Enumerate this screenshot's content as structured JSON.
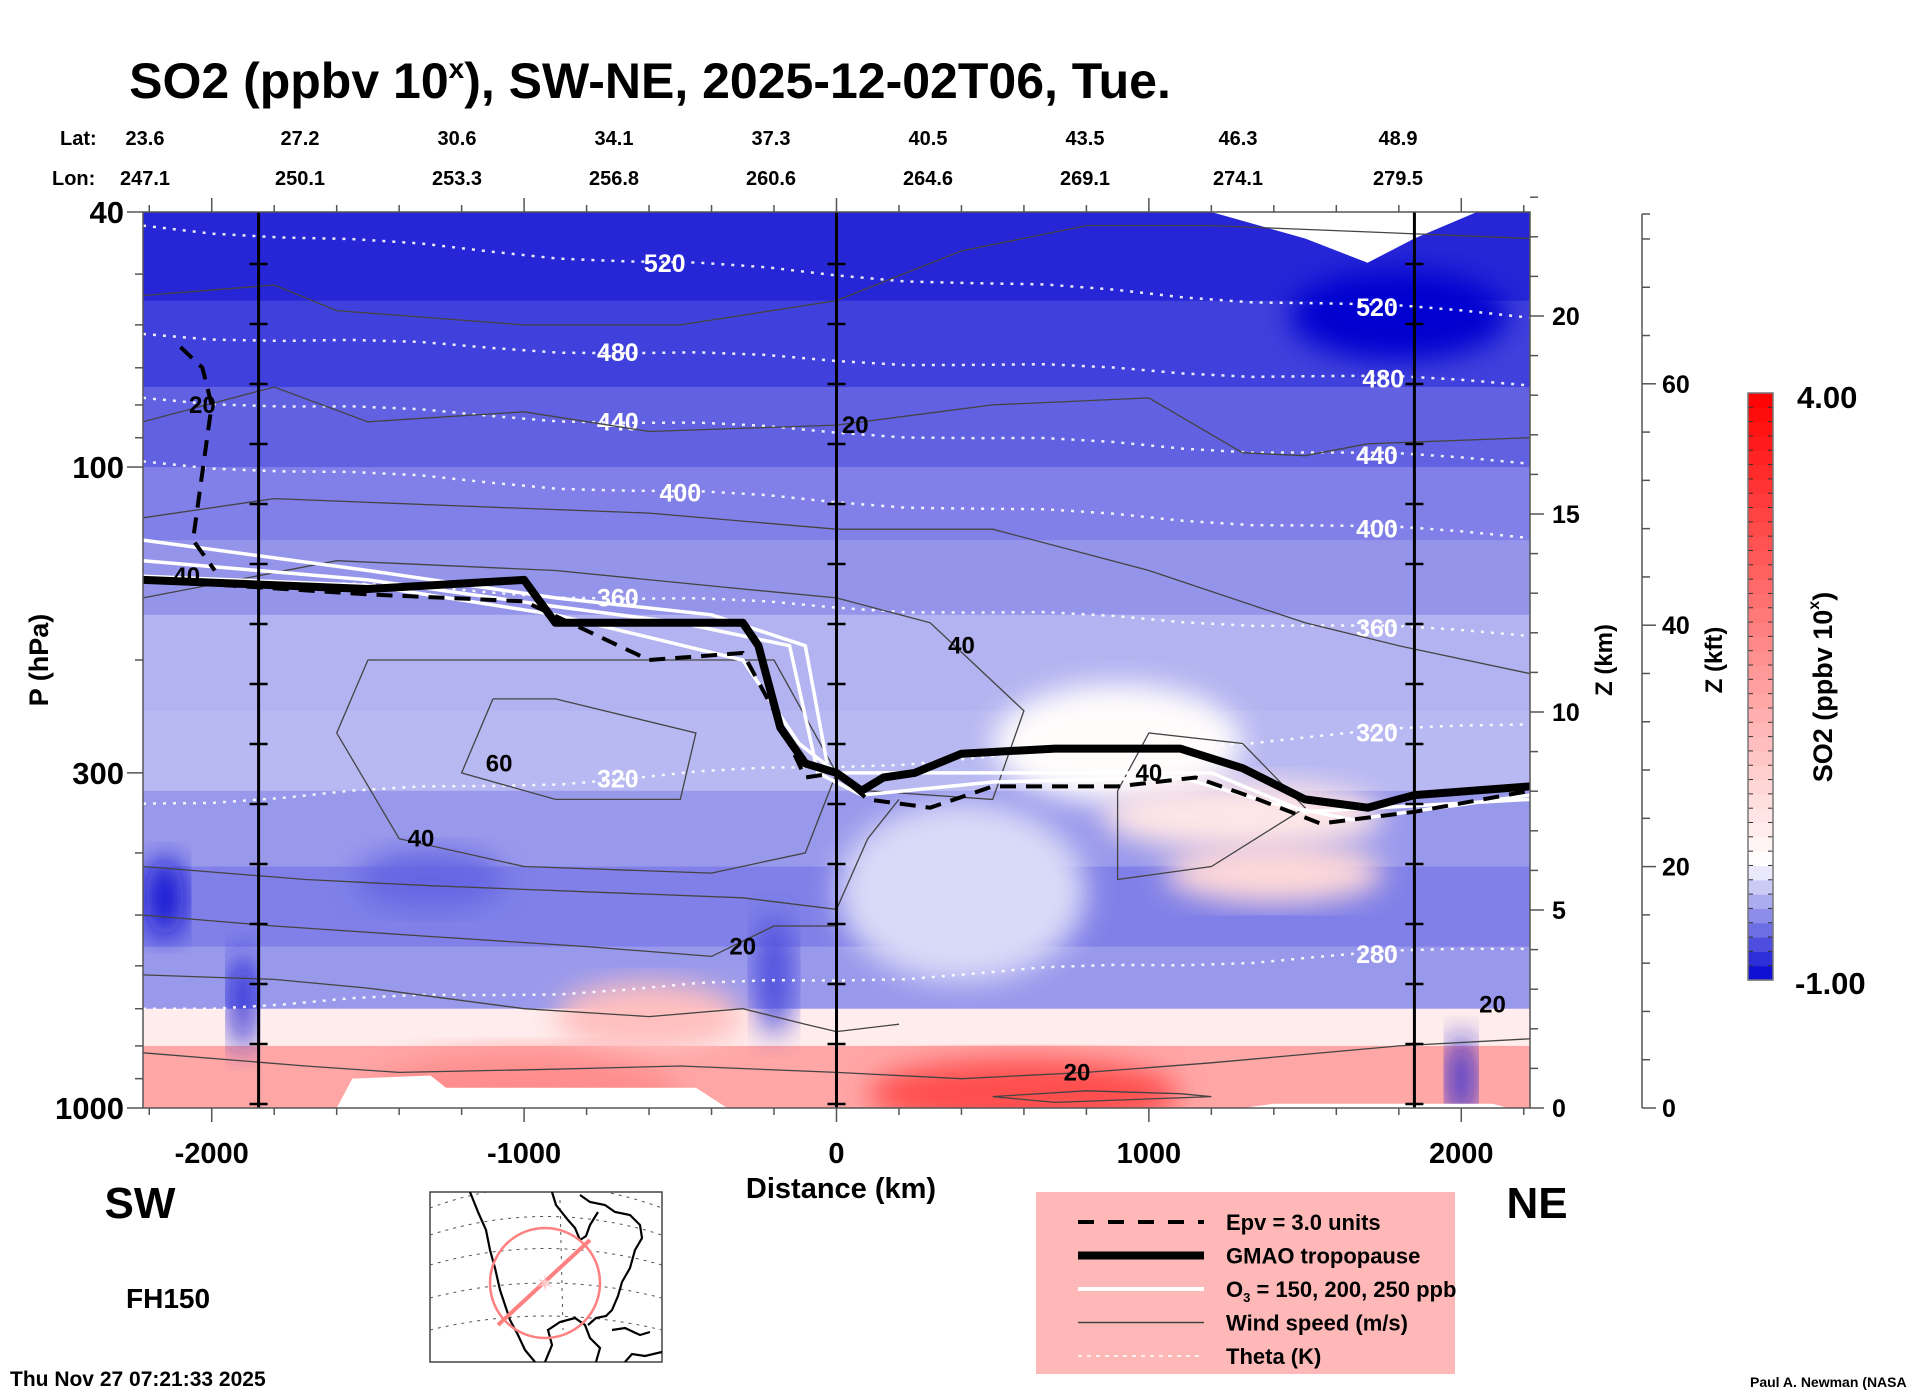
{
  "chart_data": {
    "type": "heatmap",
    "title": "SO2 (ppbv 10",
    "title_sup": "x",
    "title_rest": "), SW-NE, 2025-12-02T06, Tue.",
    "xlabel": "Distance (km)",
    "ylabel": "P (hPa)",
    "xlim": [
      -2220,
      2220
    ],
    "ylim_hpa": [
      1000,
      40
    ],
    "yscale": "log",
    "x_ticks": [
      -2000,
      -1000,
      0,
      1000,
      2000
    ],
    "x_tick_labels": [
      "-2000",
      "-1000",
      "0",
      "1000",
      "2000"
    ],
    "y_ticks": [
      40,
      100,
      300,
      1000
    ],
    "y_tick_labels": [
      "40",
      "100",
      "300",
      "1000"
    ],
    "z_km": {
      "label": "Z (km)",
      "ticks": [
        0,
        5,
        10,
        15,
        20
      ],
      "tick_labels": [
        "0",
        "5",
        "10",
        "15",
        "20"
      ]
    },
    "z_kft": {
      "label": "Z (kft)",
      "ticks": [
        0,
        20,
        40,
        60
      ],
      "tick_labels": [
        "0",
        "20",
        "40",
        "60"
      ]
    },
    "direction_left": "SW",
    "direction_right": "NE",
    "lat_label": "Lat:",
    "lon_label": "Lon:",
    "lat": [
      "23.6",
      "27.2",
      "30.6",
      "34.1",
      "37.3",
      "40.5",
      "43.5",
      "46.3",
      "48.9"
    ],
    "lon": [
      "247.1",
      "250.1",
      "253.3",
      "256.8",
      "260.6",
      "264.6",
      "269.1",
      "274.1",
      "279.5"
    ],
    "vertical_markers_km": [
      -1850,
      0,
      1850
    ],
    "colorbar": {
      "label": "SO2 (ppbv 10",
      "label_sup": "x",
      "label_end": ")",
      "min": -1.0,
      "max": 4.0,
      "min_label": "-1.00",
      "max_label": "4.00",
      "levels": 41,
      "colors": {
        "low": "#0000d0",
        "mid": "#ffffff",
        "high": "#ff0000"
      },
      "white_at": 0.0
    },
    "so2_field_regions": [
      {
        "desc": "upper stratosphere",
        "p_range": [
          40,
          100
        ],
        "value": -0.8
      },
      {
        "desc": "lower stratosphere",
        "p_range": [
          100,
          200
        ],
        "value": -0.5
      },
      {
        "desc": "upper troposphere west",
        "p_range": [
          200,
          400
        ],
        "value": -0.3
      },
      {
        "desc": "mid troposphere west",
        "p_range": [
          400,
          700
        ],
        "value": -0.55
      },
      {
        "desc": "boundary layer",
        "p_range": [
          700,
          1000
        ],
        "value": 1.5
      },
      {
        "desc": "east UT/LS near tropopause",
        "p_range": [
          220,
          400
        ],
        "value": 0.3
      }
    ],
    "theta_contours_K": [
      {
        "value": 520,
        "label_x": [
          -550,
          1730
        ]
      },
      {
        "value": 480,
        "label_x": [
          -700,
          1750
        ]
      },
      {
        "value": 440,
        "label_x": [
          -700,
          1730
        ]
      },
      {
        "value": 400,
        "label_x": [
          -500,
          1730
        ]
      },
      {
        "value": 360,
        "label_x": [
          -700,
          1730
        ]
      },
      {
        "value": 320,
        "label_x": [
          -700,
          1730
        ]
      },
      {
        "value": 280,
        "label_x": [
          1730
        ]
      }
    ],
    "wind_speed_labels_ms": [
      {
        "value": 20,
        "x": -2030,
        "p": 80
      },
      {
        "value": 40,
        "x": -2080,
        "p": 148
      },
      {
        "value": 20,
        "x": 60,
        "p": 86
      },
      {
        "value": 40,
        "x": 400,
        "p": 190
      },
      {
        "value": 60,
        "x": -1080,
        "p": 290
      },
      {
        "value": 40,
        "x": -1330,
        "p": 380
      },
      {
        "value": 20,
        "x": -300,
        "p": 560
      },
      {
        "value": 40,
        "x": 1000,
        "p": 300
      },
      {
        "value": 20,
        "x": 770,
        "p": 880
      },
      {
        "value": 20,
        "x": 2100,
        "p": 690
      }
    ],
    "tropopause_hpa": [
      [
        -2220,
        150
      ],
      [
        -1500,
        155
      ],
      [
        -1000,
        150
      ],
      [
        -900,
        175
      ],
      [
        -300,
        175
      ],
      [
        -250,
        190
      ],
      [
        -180,
        255
      ],
      [
        -100,
        290
      ],
      [
        0,
        300
      ],
      [
        80,
        320
      ],
      [
        150,
        305
      ],
      [
        250,
        300
      ],
      [
        400,
        280
      ],
      [
        700,
        275
      ],
      [
        1100,
        275
      ],
      [
        1300,
        295
      ],
      [
        1500,
        330
      ],
      [
        1700,
        340
      ],
      [
        1850,
        325
      ],
      [
        2220,
        315
      ]
    ],
    "epv_hpa": [
      [
        -2220,
        150
      ],
      [
        -1500,
        158
      ],
      [
        -1000,
        162
      ],
      [
        -600,
        200
      ],
      [
        -300,
        195
      ],
      [
        -200,
        240
      ],
      [
        -100,
        305
      ],
      [
        0,
        300
      ],
      [
        100,
        330
      ],
      [
        300,
        340
      ],
      [
        500,
        315
      ],
      [
        900,
        315
      ],
      [
        1150,
        305
      ],
      [
        1350,
        330
      ],
      [
        1550,
        360
      ],
      [
        1850,
        345
      ],
      [
        2220,
        320
      ]
    ],
    "epv_west_hpa": [
      [
        -2100,
        65
      ],
      [
        -2030,
        70
      ],
      [
        -2000,
        80
      ],
      [
        -2060,
        130
      ],
      [
        -1990,
        145
      ]
    ],
    "o3_hpa": [
      [
        [
          -2220,
          140
        ],
        [
          -1500,
          150
        ],
        [
          -900,
          165
        ],
        [
          -500,
          175
        ],
        [
          -150,
          190
        ],
        [
          -60,
          300
        ],
        [
          80,
          325
        ],
        [
          500,
          310
        ],
        [
          1100,
          305
        ],
        [
          1400,
          335
        ],
        [
          1650,
          355
        ],
        [
          2220,
          325
        ]
      ],
      [
        [
          -2220,
          130
        ],
        [
          -1500,
          145
        ],
        [
          -900,
          160
        ],
        [
          -400,
          170
        ],
        [
          -100,
          190
        ],
        [
          -30,
          290
        ]
      ],
      [
        [
          -2220,
          148
        ],
        [
          -1500,
          153
        ],
        [
          -900,
          170
        ],
        [
          -300,
          200
        ],
        [
          -120,
          270
        ],
        [
          0,
          300
        ],
        [
          1200,
          300
        ],
        [
          1500,
          345
        ],
        [
          2220,
          330
        ]
      ]
    ],
    "legend": [
      {
        "style": "dashed",
        "label": "Epv = 3.0 units"
      },
      {
        "style": "thick",
        "label": "GMAO tropopause"
      },
      {
        "style": "white",
        "label": "O",
        "label_sub": "3",
        "label_rest": " = 150, 200, 250 ppb"
      },
      {
        "style": "thin",
        "label": "Wind speed (m/s)"
      },
      {
        "style": "dotted",
        "label": "Theta (K)"
      }
    ],
    "legend_bg": "#ffb8b8"
  },
  "forecast_hour": "FH150",
  "timestamp": "Thu Nov 27 07:21:33 2025",
  "credit": "Paul A. Newman (NASA",
  "map_inset": {
    "desc": "North America map with SW-NE transect and 2000 km circle",
    "line_color": "#ff8080"
  }
}
